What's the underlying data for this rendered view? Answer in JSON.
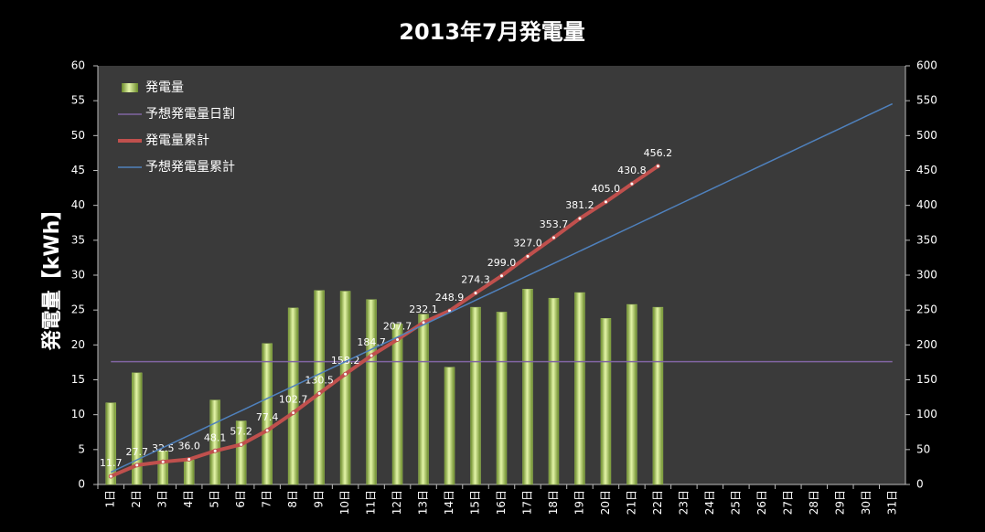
{
  "chart_data": {
    "type": "bar",
    "title": "2013年7月発電量",
    "ylabel": "発電量【kWh】",
    "categories": [
      "1日",
      "2日",
      "3日",
      "4日",
      "5日",
      "6日",
      "7日",
      "8日",
      "9日",
      "10日",
      "11日",
      "12日",
      "13日",
      "14日",
      "15日",
      "16日",
      "17日",
      "18日",
      "19日",
      "20日",
      "21日",
      "22日",
      "23日",
      "24日",
      "25日",
      "26日",
      "27日",
      "28日",
      "29日",
      "30日",
      "31日"
    ],
    "series": [
      {
        "name": "発電量",
        "type": "bar",
        "axis": "y",
        "color": "#9bbb59",
        "values": [
          11.7,
          16.0,
          4.8,
          3.5,
          12.1,
          9.1,
          20.2,
          25.3,
          27.8,
          27.7,
          26.5,
          23.0,
          24.4,
          16.8,
          25.4,
          24.7,
          28.0,
          26.7,
          27.5,
          23.8,
          25.8,
          25.4,
          null,
          null,
          null,
          null,
          null,
          null,
          null,
          null,
          null
        ]
      },
      {
        "name": "予想発電量日割",
        "type": "line",
        "axis": "y",
        "color": "#8064a2",
        "values": [
          17.6,
          17.6,
          17.6,
          17.6,
          17.6,
          17.6,
          17.6,
          17.6,
          17.6,
          17.6,
          17.6,
          17.6,
          17.6,
          17.6,
          17.6,
          17.6,
          17.6,
          17.6,
          17.6,
          17.6,
          17.6,
          17.6,
          17.6,
          17.6,
          17.6,
          17.6,
          17.6,
          17.6,
          17.6,
          17.6,
          17.6
        ]
      },
      {
        "name": "発電量累計",
        "type": "line",
        "axis": "y2",
        "color": "#c0504d",
        "markers": true,
        "values": [
          11.7,
          27.7,
          32.5,
          36.0,
          48.1,
          57.2,
          77.4,
          102.7,
          130.5,
          158.2,
          184.7,
          207.7,
          232.1,
          248.9,
          274.3,
          299.0,
          327.0,
          353.7,
          381.2,
          405.0,
          430.8,
          456.2,
          null,
          null,
          null,
          null,
          null,
          null,
          null,
          null,
          null
        ],
        "value_labels": [
          "11.7",
          "27.7",
          "32.5",
          "36.0",
          "48.1",
          "57.2",
          "77.4",
          "102.7",
          "130.5",
          "158.2",
          "184.7",
          "207.7",
          "232.1",
          "248.9",
          "274.3",
          "299.0",
          "327.0",
          "353.7",
          "381.2",
          "405.0",
          "430.8",
          "456.2",
          null,
          null,
          null,
          null,
          null,
          null,
          null,
          null,
          null
        ]
      },
      {
        "name": "予想発電量累計",
        "type": "line",
        "axis": "y2",
        "color": "#4f81bd",
        "values": [
          17.6,
          35.2,
          52.8,
          70.4,
          88.0,
          105.6,
          123.2,
          140.8,
          158.4,
          176.0,
          193.6,
          211.2,
          228.8,
          246.4,
          264.0,
          281.6,
          299.2,
          316.8,
          334.4,
          352.0,
          369.6,
          387.2,
          404.8,
          422.4,
          440.0,
          457.6,
          475.2,
          492.8,
          510.4,
          528.0,
          545.6
        ]
      }
    ],
    "ylim": [
      0,
      60
    ],
    "yticks": [
      0,
      5,
      10,
      15,
      20,
      25,
      30,
      35,
      40,
      45,
      50,
      55,
      60
    ],
    "y2lim": [
      0,
      600
    ],
    "y2ticks": [
      0,
      50,
      100,
      150,
      200,
      250,
      300,
      350,
      400,
      450,
      500,
      550,
      600
    ],
    "grid": false,
    "legend": "upper left"
  }
}
